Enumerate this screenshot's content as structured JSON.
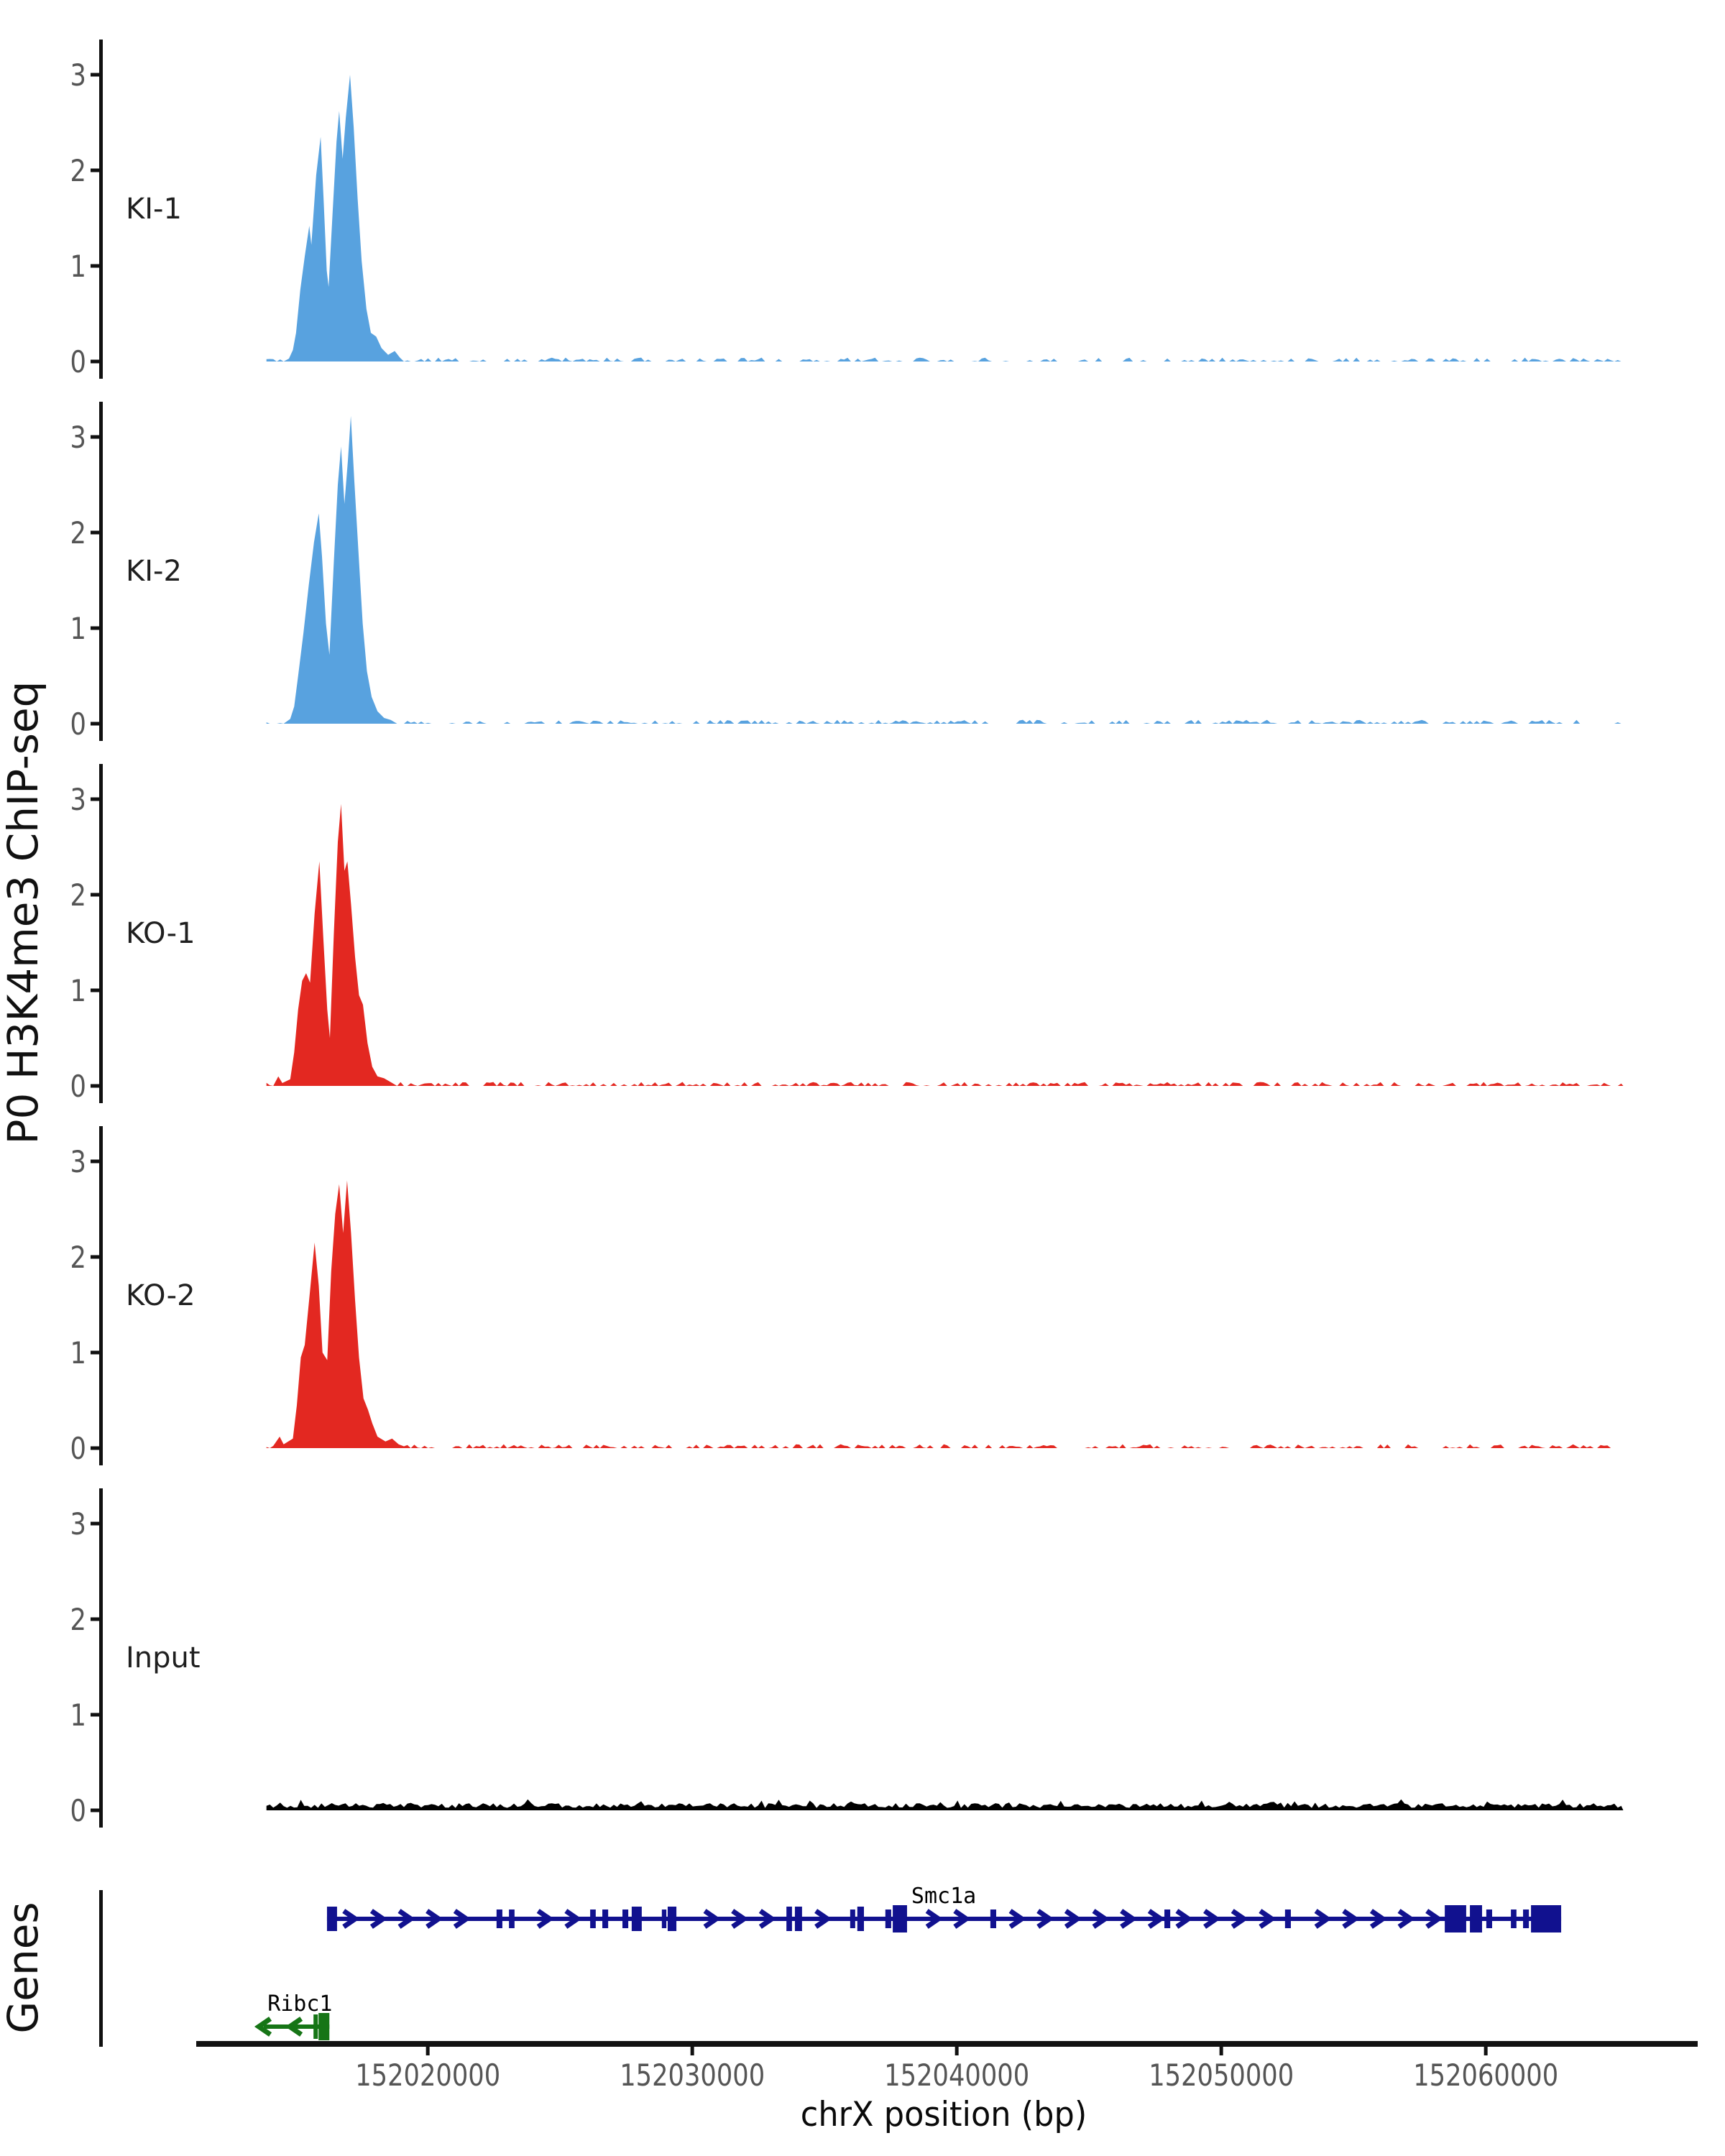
{
  "figure": {
    "y_axis_label": "P0 H3K4me3 ChIP-seq",
    "x_axis_label": "chrX position (bp)",
    "genes_panel_label": "Genes"
  },
  "chart_data": {
    "type": "area",
    "title": "",
    "xlabel": "chrX position (bp)",
    "ylabel": "P0 H3K4me3 ChIP-seq",
    "x_unit": "bp",
    "chromosome": "chrX",
    "x_domain": [
      152011300,
      152068000
    ],
    "x_ticks": [
      152020000,
      152030000,
      152040000,
      152050000,
      152060000
    ],
    "y_domain": [
      0,
      3.37
    ],
    "y_ticks": [
      0,
      1,
      2,
      3
    ],
    "coverage_range": [
      152013900,
      152065200
    ],
    "colors": {
      "ki_blue": "#58A2DF",
      "ko_red": "#E32821",
      "input_black": "#000000",
      "gene_navy": "#11118F",
      "gene_green": "#167516",
      "axis": "#111111",
      "tick_label_gray": "#555555",
      "track_label": "#1f1f1f"
    },
    "tracks": [
      {
        "label": "KI-1",
        "color": "#58A2DF",
        "noise_seed": 11,
        "noise_amp": 0.035,
        "continuous": false,
        "peak": [
          [
            152014750,
            0.03
          ],
          [
            152014900,
            0.12
          ],
          [
            152015020,
            0.3
          ],
          [
            152015180,
            0.75
          ],
          [
            152015350,
            1.1
          ],
          [
            152015520,
            1.42
          ],
          [
            152015600,
            1.22
          ],
          [
            152015780,
            1.95
          ],
          [
            152015950,
            2.35
          ],
          [
            152016060,
            1.7
          ],
          [
            152016180,
            0.95
          ],
          [
            152016250,
            0.78
          ],
          [
            152016400,
            1.55
          ],
          [
            152016550,
            2.3
          ],
          [
            152016650,
            2.62
          ],
          [
            152016780,
            2.12
          ],
          [
            152016900,
            2.55
          ],
          [
            152017060,
            3.0
          ],
          [
            152017200,
            2.45
          ],
          [
            152017350,
            1.7
          ],
          [
            152017500,
            1.05
          ],
          [
            152017680,
            0.55
          ],
          [
            152017850,
            0.3
          ],
          [
            152018050,
            0.26
          ],
          [
            152018250,
            0.14
          ],
          [
            152018500,
            0.07
          ],
          [
            152018750,
            0.11
          ],
          [
            152018950,
            0.04
          ]
        ]
      },
      {
        "label": "KI-2",
        "color": "#58A2DF",
        "noise_seed": 22,
        "noise_amp": 0.035,
        "continuous": false,
        "peak": [
          [
            152014800,
            0.05
          ],
          [
            152014950,
            0.18
          ],
          [
            152015100,
            0.5
          ],
          [
            152015300,
            0.95
          ],
          [
            152015500,
            1.45
          ],
          [
            152015700,
            1.9
          ],
          [
            152015880,
            2.2
          ],
          [
            152016000,
            1.75
          ],
          [
            152016150,
            1.05
          ],
          [
            152016280,
            0.72
          ],
          [
            152016450,
            1.7
          ],
          [
            152016600,
            2.5
          ],
          [
            152016720,
            2.9
          ],
          [
            152016850,
            2.3
          ],
          [
            152016980,
            2.75
          ],
          [
            152017090,
            3.22
          ],
          [
            152017220,
            2.55
          ],
          [
            152017380,
            1.8
          ],
          [
            152017540,
            1.05
          ],
          [
            152017700,
            0.55
          ],
          [
            152017880,
            0.28
          ],
          [
            152018100,
            0.13
          ],
          [
            152018350,
            0.06
          ],
          [
            152018600,
            0.04
          ]
        ]
      },
      {
        "label": "KO-1",
        "color": "#E32821",
        "noise_seed": 33,
        "noise_amp": 0.035,
        "continuous": false,
        "peak": [
          [
            152014350,
            0.1
          ],
          [
            152014500,
            0.03
          ],
          [
            152014800,
            0.07
          ],
          [
            152014950,
            0.35
          ],
          [
            152015100,
            0.8
          ],
          [
            152015250,
            1.1
          ],
          [
            152015400,
            1.18
          ],
          [
            152015550,
            1.08
          ],
          [
            152015720,
            1.8
          ],
          [
            152015900,
            2.35
          ],
          [
            152016050,
            1.55
          ],
          [
            152016200,
            0.8
          ],
          [
            152016300,
            0.5
          ],
          [
            152016450,
            1.6
          ],
          [
            152016600,
            2.55
          ],
          [
            152016720,
            2.95
          ],
          [
            152016850,
            2.25
          ],
          [
            152016960,
            2.35
          ],
          [
            152017100,
            1.9
          ],
          [
            152017250,
            1.35
          ],
          [
            152017400,
            0.95
          ],
          [
            152017550,
            0.85
          ],
          [
            152017720,
            0.45
          ],
          [
            152017900,
            0.2
          ],
          [
            152018100,
            0.1
          ],
          [
            152018350,
            0.08
          ],
          [
            152018600,
            0.04
          ]
        ]
      },
      {
        "label": "KO-2",
        "color": "#E32821",
        "noise_seed": 44,
        "noise_amp": 0.035,
        "continuous": false,
        "peak": [
          [
            152014400,
            0.12
          ],
          [
            152014550,
            0.04
          ],
          [
            152014900,
            0.1
          ],
          [
            152015050,
            0.45
          ],
          [
            152015200,
            0.95
          ],
          [
            152015350,
            1.08
          ],
          [
            152015550,
            1.65
          ],
          [
            152015720,
            2.15
          ],
          [
            152015880,
            1.7
          ],
          [
            152016020,
            1.0
          ],
          [
            152016200,
            0.92
          ],
          [
            152016350,
            1.85
          ],
          [
            152016500,
            2.45
          ],
          [
            152016650,
            2.76
          ],
          [
            152016800,
            2.25
          ],
          [
            152016950,
            2.8
          ],
          [
            152017100,
            2.25
          ],
          [
            152017250,
            1.55
          ],
          [
            152017400,
            0.95
          ],
          [
            152017570,
            0.52
          ],
          [
            152017740,
            0.4
          ],
          [
            152017900,
            0.26
          ],
          [
            152018100,
            0.12
          ],
          [
            152018400,
            0.07
          ],
          [
            152018650,
            0.1
          ],
          [
            152018900,
            0.04
          ]
        ]
      },
      {
        "label": "Input",
        "color": "#000000",
        "noise_seed": 55,
        "noise_amp": 0.08,
        "continuous": true,
        "peak": []
      }
    ],
    "genes": [
      {
        "name": "Smc1a",
        "color": "#11118F",
        "strand": "+",
        "start": 152016190,
        "end": 152062850,
        "label_bp": 152038280,
        "label_anchor": "start",
        "exons": [
          [
            152016190,
            152016570,
            "m"
          ],
          [
            152022600,
            152022820,
            "s"
          ],
          [
            152023070,
            152023280,
            "s"
          ],
          [
            152026140,
            152026350,
            "s"
          ],
          [
            152026600,
            152026820,
            "s"
          ],
          [
            152027360,
            152027580,
            "s"
          ],
          [
            152027710,
            152028090,
            "m"
          ],
          [
            152028850,
            152029020,
            "s"
          ],
          [
            152029070,
            152029400,
            "m"
          ],
          [
            152033560,
            152033770,
            "m"
          ],
          [
            152033880,
            152034150,
            "m"
          ],
          [
            152035970,
            152036160,
            "s"
          ],
          [
            152036240,
            152036490,
            "m"
          ],
          [
            152037300,
            152037520,
            "s"
          ],
          [
            152037580,
            152038120,
            "l"
          ],
          [
            152041270,
            152041490,
            "s"
          ],
          [
            152047850,
            152048070,
            "s"
          ],
          [
            152052410,
            152052630,
            "s"
          ],
          [
            152058450,
            152059260,
            "l"
          ],
          [
            152059400,
            152059860,
            "l"
          ],
          [
            152060020,
            152060240,
            "s"
          ],
          [
            152060950,
            152061160,
            "s"
          ],
          [
            152061410,
            152061630,
            "s"
          ],
          [
            152061710,
            152062850,
            "l"
          ]
        ]
      },
      {
        "name": "Ribc1",
        "color": "#167516",
        "strand": "-",
        "start": 152013800,
        "end": 152016280,
        "label_bp": 152013940,
        "label_anchor": "start",
        "exons": [
          [
            152015680,
            152015820,
            "m"
          ],
          [
            152015870,
            152016280,
            "l"
          ]
        ],
        "arrows_bp": [
          152013830,
          152015000
        ]
      }
    ]
  }
}
